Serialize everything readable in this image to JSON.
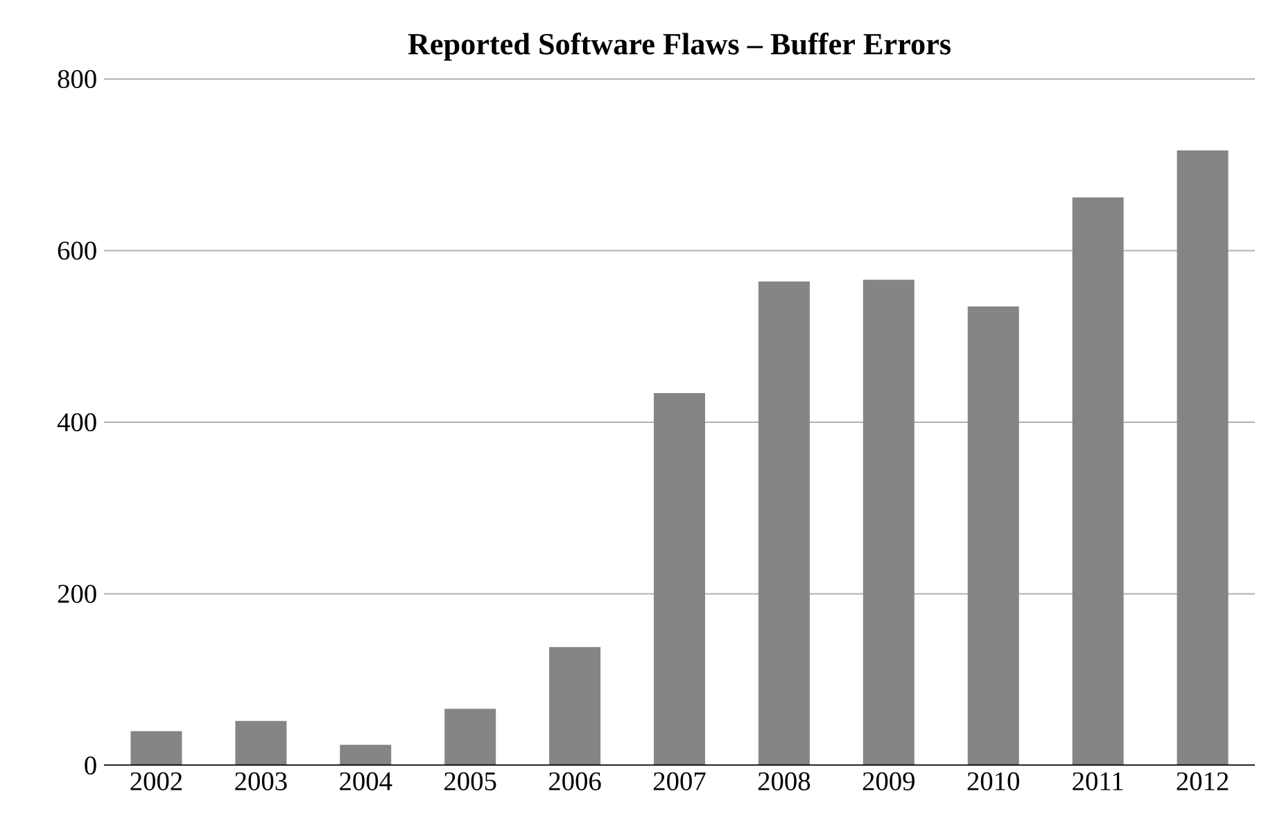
{
  "chart_data": {
    "type": "bar",
    "title": "Reported Software Flaws – Buffer Errors",
    "categories": [
      "2002",
      "2003",
      "2004",
      "2005",
      "2006",
      "2007",
      "2008",
      "2009",
      "2010",
      "2011",
      "2012"
    ],
    "values": [
      40,
      52,
      24,
      66,
      138,
      434,
      564,
      566,
      535,
      662,
      717
    ],
    "color": "#858585",
    "ylim": [
      0,
      800
    ],
    "yticks": [
      0,
      200,
      400,
      600,
      800
    ],
    "grid": "y"
  }
}
